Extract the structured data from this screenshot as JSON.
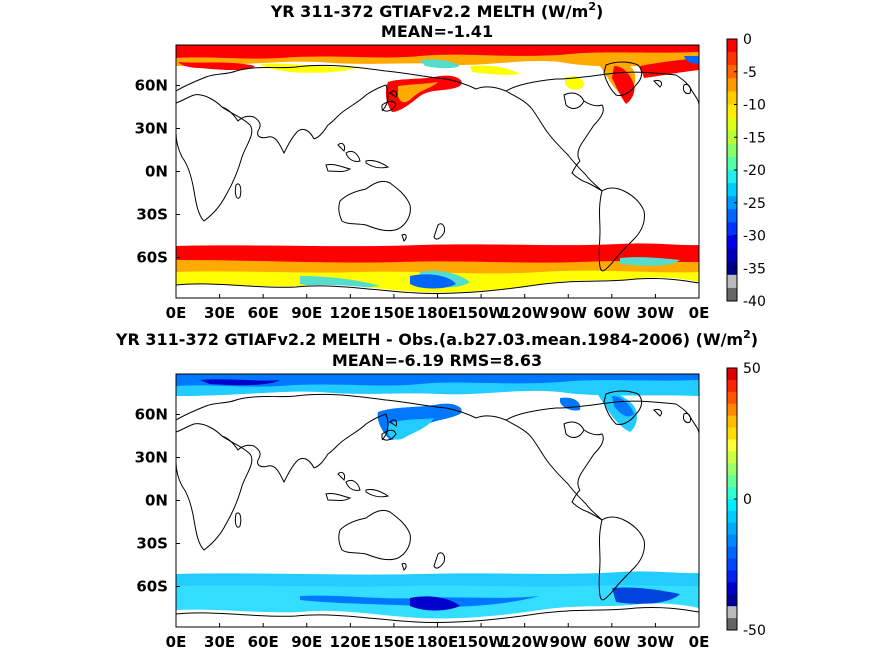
{
  "panels": [
    {
      "title": "YR 311-372 GTIAFv2.2  MELTH (W/m",
      "title_sup": "2",
      "title_end": ")",
      "subtitle": "MEAN=-1.41",
      "colorbar": {
        "ticks": [
          "0",
          "-5",
          "-10",
          "-15",
          "-20",
          "-25",
          "-30",
          "-35",
          "-40"
        ],
        "range": [
          -40,
          0
        ],
        "colors_top_to_bottom": [
          "#ff0000",
          "#ff3300",
          "#ff6600",
          "#ff9900",
          "#ffcc00",
          "#ffee00",
          "#ddff11",
          "#bbff33",
          "#88ff66",
          "#55ffaa",
          "#22eeee",
          "#00ccff",
          "#0099ff",
          "#0066ff",
          "#0033ff",
          "#0000ee",
          "#0000bb",
          "#000088",
          "#bbbbbb",
          "#666666"
        ]
      },
      "field_colors": {
        "strong": "#ff0000",
        "mid": "#ffaa00",
        "weak": "#ffff00",
        "cool": "#55ddcc",
        "cold": "#0066ff"
      }
    },
    {
      "title": "YR 311-372 GTIAFv2.2 MELTH - Obs.(a.b27.03.mean.1984-2006) (W/m",
      "title_sup": "2",
      "title_end": ")",
      "subtitle": "MEAN=-6.19 RMS=8.63",
      "colorbar": {
        "ticks": [
          "50",
          "0",
          "-50"
        ],
        "range": [
          -50,
          50
        ],
        "colors_top_to_bottom": [
          "#dd0000",
          "#ff2200",
          "#ff5500",
          "#ff8800",
          "#ffbb00",
          "#ffdd00",
          "#ffff33",
          "#ccff44",
          "#99ff66",
          "#66ff99",
          "#33ffcc",
          "#00eeff",
          "#00ccff",
          "#00aaff",
          "#0088ff",
          "#0066ff",
          "#0044ff",
          "#0022ee",
          "#0000cc",
          "#000099",
          "#bbbbbb",
          "#666666"
        ]
      },
      "field_colors": {
        "strong": "#0000cc",
        "mid": "#0077ff",
        "weak": "#22ccff",
        "cool": "#33ddff",
        "cold": "#0044dd"
      }
    }
  ],
  "x_ticks": [
    "0E",
    "30E",
    "60E",
    "90E",
    "120E",
    "150E",
    "180E",
    "150W",
    "120W",
    "90W",
    "60W",
    "30W",
    "0E"
  ],
  "y_ticks": [
    "60N",
    "30N",
    "0N",
    "30S",
    "60S"
  ]
}
